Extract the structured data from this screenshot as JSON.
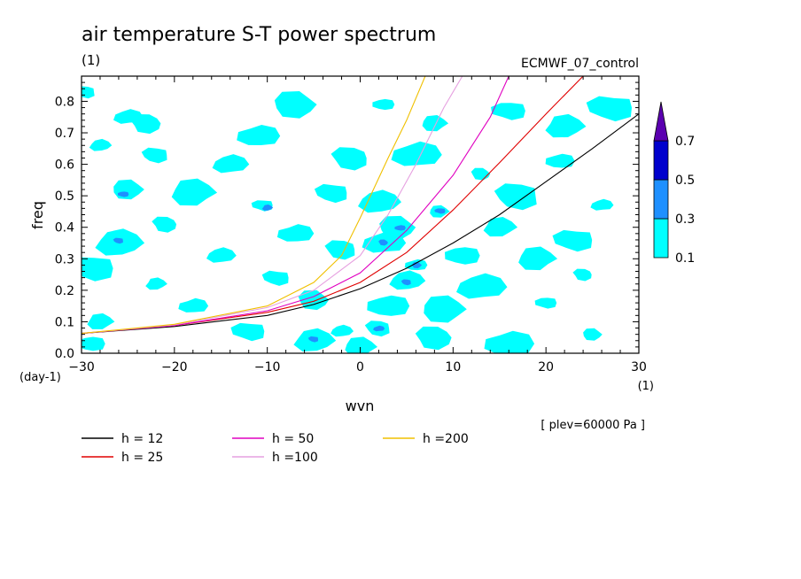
{
  "chart_data": {
    "type": "heatmap",
    "title": "air temperature S-T power spectrum",
    "units_label": "(1)",
    "dataset_label": "ECMWF_07_control",
    "xlabel": "wvn",
    "ylabel": "freq",
    "y_units": "(day-1)",
    "x_units": "(1)",
    "level_label": "[ plev=60000 Pa ]",
    "xlim": [
      -30,
      30
    ],
    "ylim": [
      0,
      0.88
    ],
    "xticks": [
      -30,
      -20,
      -10,
      0,
      10,
      20,
      30
    ],
    "yticks": [
      0.0,
      0.1,
      0.2,
      0.3,
      0.4,
      0.5,
      0.6,
      0.7,
      0.8
    ],
    "colorbar": {
      "levels": [
        0.1,
        0.3,
        0.5,
        0.7
      ],
      "colors": [
        "#00ffff",
        "#1e90ff",
        "#0000cd",
        "#5b00b0"
      ],
      "extend": "max"
    },
    "series": [
      {
        "name": "h = 12",
        "color": "#000000",
        "x": [
          -30,
          -20,
          -10,
          -5,
          0,
          5,
          10,
          15,
          20,
          25,
          30
        ],
        "y": [
          0.063,
          0.085,
          0.12,
          0.155,
          0.205,
          0.27,
          0.35,
          0.44,
          0.545,
          0.65,
          0.76
        ]
      },
      {
        "name": "h = 25",
        "color": "#e00000",
        "x": [
          -30,
          -20,
          -10,
          -5,
          0,
          5,
          10,
          15,
          20,
          24
        ],
        "y": [
          0.063,
          0.088,
          0.13,
          0.165,
          0.225,
          0.32,
          0.455,
          0.605,
          0.76,
          0.88
        ]
      },
      {
        "name": "h = 50",
        "color": "#e000c0",
        "x": [
          -30,
          -20,
          -10,
          -5,
          0,
          5,
          10,
          14,
          16
        ],
        "y": [
          0.063,
          0.088,
          0.135,
          0.18,
          0.255,
          0.39,
          0.565,
          0.75,
          0.88
        ]
      },
      {
        "name": "h =100",
        "color": "#e6a0e0",
        "x": [
          -30,
          -20,
          -10,
          -5,
          0,
          3,
          6,
          9,
          11
        ],
        "y": [
          0.063,
          0.09,
          0.145,
          0.2,
          0.31,
          0.44,
          0.6,
          0.78,
          0.88
        ]
      },
      {
        "name": "h =200",
        "color": "#f0c000",
        "x": [
          -30,
          -20,
          -10,
          -5,
          -2,
          0,
          3,
          5,
          7
        ],
        "y": [
          0.063,
          0.092,
          0.15,
          0.225,
          0.31,
          0.43,
          0.62,
          0.74,
          0.88
        ]
      }
    ],
    "contour_regions": [
      {
        "level": 0.1,
        "x": -29.5,
        "y": 0.83
      },
      {
        "level": 0.1,
        "x": -25.0,
        "y": 0.75
      },
      {
        "level": 0.1,
        "x": -23.0,
        "y": 0.73
      },
      {
        "level": 0.1,
        "x": -11.0,
        "y": 0.69
      },
      {
        "level": 0.1,
        "x": -7.0,
        "y": 0.79
      },
      {
        "level": 0.1,
        "x": 2.5,
        "y": 0.79
      },
      {
        "level": 0.1,
        "x": 8.0,
        "y": 0.73
      },
      {
        "level": 0.1,
        "x": 16.0,
        "y": 0.77
      },
      {
        "level": 0.1,
        "x": 22.0,
        "y": 0.72
      },
      {
        "level": 0.1,
        "x": 27.0,
        "y": 0.78
      },
      {
        "level": 0.1,
        "x": -28.0,
        "y": 0.66
      },
      {
        "level": 0.1,
        "x": -22.0,
        "y": 0.63
      },
      {
        "level": 0.1,
        "x": -14.0,
        "y": 0.6
      },
      {
        "level": 0.1,
        "x": -1.0,
        "y": 0.62
      },
      {
        "level": 0.1,
        "x": 6.0,
        "y": 0.63
      },
      {
        "level": 0.1,
        "x": 13.0,
        "y": 0.57
      },
      {
        "level": 0.1,
        "x": 21.5,
        "y": 0.61
      },
      {
        "level": 0.1,
        "x": -25.0,
        "y": 0.52
      },
      {
        "level": 0.3,
        "x": -25.5,
        "y": 0.505
      },
      {
        "level": 0.1,
        "x": -18.0,
        "y": 0.51
      },
      {
        "level": 0.1,
        "x": -10.5,
        "y": 0.47
      },
      {
        "level": 0.3,
        "x": -10.0,
        "y": 0.462
      },
      {
        "level": 0.1,
        "x": -3.0,
        "y": 0.51
      },
      {
        "level": 0.1,
        "x": 2.0,
        "y": 0.48
      },
      {
        "level": 0.1,
        "x": 17.0,
        "y": 0.5
      },
      {
        "level": 0.1,
        "x": 26.0,
        "y": 0.47
      },
      {
        "level": 0.1,
        "x": -21.0,
        "y": 0.41
      },
      {
        "level": 0.1,
        "x": -7.0,
        "y": 0.38
      },
      {
        "level": 0.1,
        "x": 4.0,
        "y": 0.4
      },
      {
        "level": 0.3,
        "x": 4.3,
        "y": 0.398
      },
      {
        "level": 0.1,
        "x": 8.5,
        "y": 0.45
      },
      {
        "level": 0.3,
        "x": 8.6,
        "y": 0.452
      },
      {
        "level": 0.1,
        "x": 15.0,
        "y": 0.4
      },
      {
        "level": 0.1,
        "x": 23.0,
        "y": 0.36
      },
      {
        "level": 0.1,
        "x": -26.0,
        "y": 0.35
      },
      {
        "level": 0.3,
        "x": -26.0,
        "y": 0.358
      },
      {
        "level": 0.1,
        "x": -15.0,
        "y": 0.31
      },
      {
        "level": 0.1,
        "x": -2.0,
        "y": 0.33
      },
      {
        "level": 0.1,
        "x": 2.5,
        "y": 0.35
      },
      {
        "level": 0.3,
        "x": 2.5,
        "y": 0.352
      },
      {
        "level": 0.1,
        "x": 6.0,
        "y": 0.28
      },
      {
        "level": 0.3,
        "x": 6.1,
        "y": 0.28
      },
      {
        "level": 0.1,
        "x": 11.0,
        "y": 0.31
      },
      {
        "level": 0.1,
        "x": 19.0,
        "y": 0.3
      },
      {
        "level": 0.1,
        "x": -29.0,
        "y": 0.27
      },
      {
        "level": 0.1,
        "x": -22.0,
        "y": 0.22
      },
      {
        "level": 0.1,
        "x": -9.0,
        "y": 0.24
      },
      {
        "level": 0.1,
        "x": 5.0,
        "y": 0.23
      },
      {
        "level": 0.3,
        "x": 5.0,
        "y": 0.226
      },
      {
        "level": 0.1,
        "x": 13.0,
        "y": 0.21
      },
      {
        "level": 0.1,
        "x": 24.0,
        "y": 0.25
      },
      {
        "level": 0.1,
        "x": -18.0,
        "y": 0.15
      },
      {
        "level": 0.1,
        "x": -5.0,
        "y": 0.17
      },
      {
        "level": 0.1,
        "x": 3.0,
        "y": 0.15
      },
      {
        "level": 0.1,
        "x": 9.0,
        "y": 0.14
      },
      {
        "level": 0.1,
        "x": 20.0,
        "y": 0.16
      },
      {
        "level": 0.1,
        "x": -28.0,
        "y": 0.1
      },
      {
        "level": 0.1,
        "x": -12.0,
        "y": 0.07
      },
      {
        "level": 0.1,
        "x": -5.0,
        "y": 0.04
      },
      {
        "level": 0.3,
        "x": -5.0,
        "y": 0.045
      },
      {
        "level": 0.1,
        "x": -2.0,
        "y": 0.07
      },
      {
        "level": 0.1,
        "x": 2.0,
        "y": 0.08
      },
      {
        "level": 0.3,
        "x": 2.0,
        "y": 0.078
      },
      {
        "level": 0.1,
        "x": 8.0,
        "y": 0.05
      },
      {
        "level": 0.1,
        "x": 16.0,
        "y": 0.03
      },
      {
        "level": 0.1,
        "x": 25.0,
        "y": 0.06
      },
      {
        "level": 0.1,
        "x": -29.0,
        "y": 0.03
      },
      {
        "level": 0.1,
        "x": 0.0,
        "y": 0.02
      }
    ]
  }
}
